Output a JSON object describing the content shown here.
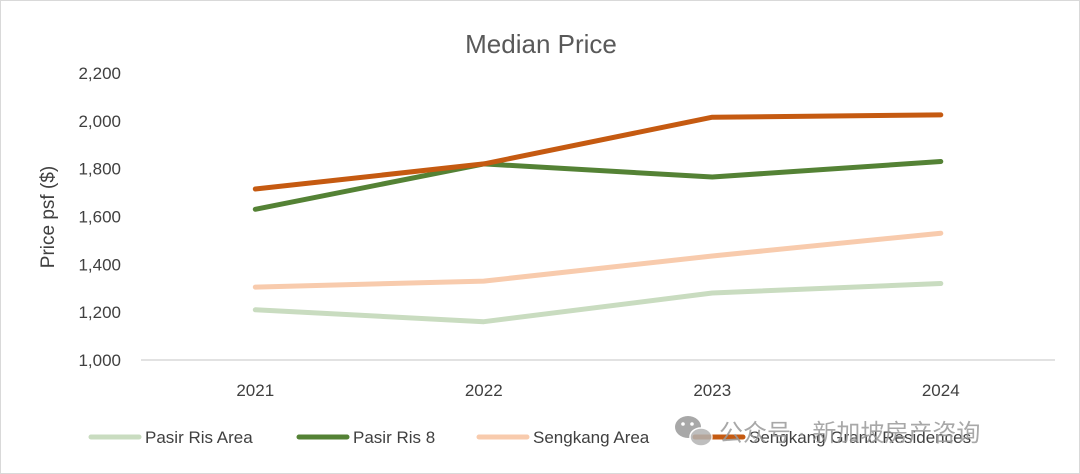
{
  "chart_data": {
    "type": "line",
    "title": "Median Price",
    "xlabel": "",
    "ylabel": "Price psf ($)",
    "categories": [
      "2021",
      "2022",
      "2023",
      "2024"
    ],
    "ylim": [
      1000,
      2200
    ],
    "yticks": [
      1000,
      1200,
      1400,
      1600,
      1800,
      2000,
      2200
    ],
    "ytick_labels": [
      "1,000",
      "1,200",
      "1,400",
      "1,600",
      "1,800",
      "2,000",
      "2,200"
    ],
    "grid": false,
    "legend_position": "bottom",
    "series": [
      {
        "name": "Pasir Ris Area",
        "color": "#c9dcc0",
        "values": [
          1210,
          1160,
          1280,
          1320
        ]
      },
      {
        "name": "Pasir Ris 8",
        "color": "#548235",
        "values": [
          1630,
          1820,
          1765,
          1830
        ]
      },
      {
        "name": "Sengkang Area",
        "color": "#f8cbad",
        "values": [
          1305,
          1330,
          1435,
          1530
        ]
      },
      {
        "name": "Sengkang Grand Residences",
        "color": "#c55a11",
        "values": [
          1715,
          1820,
          2015,
          2025
        ]
      }
    ]
  },
  "watermark": {
    "text": "公众号 · 新加坡房产咨询",
    "icon": "wechat-icon"
  }
}
